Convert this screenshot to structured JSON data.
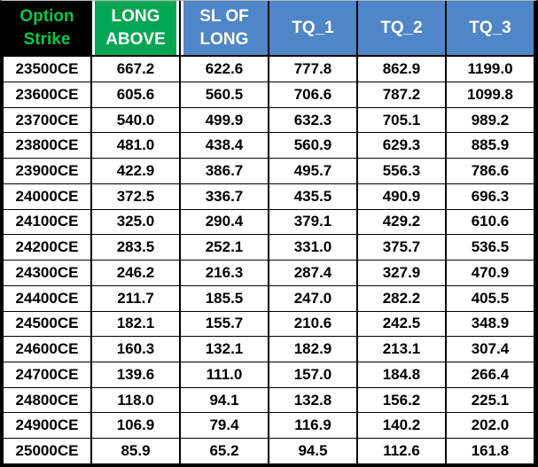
{
  "colors": {
    "header_green": "#00A651",
    "header_blue": "#4E86C8",
    "strike_text_green": "#00C846",
    "grid_black": "#000000",
    "header_text_white": "#FFFFFF",
    "cell_text_black": "#000000"
  },
  "table": {
    "headers": {
      "option_strike_line1": "Option",
      "option_strike_line2": "Strike",
      "long_above_line1": "LONG",
      "long_above_line2": "ABOVE",
      "sl_of_long_line1": "SL OF",
      "sl_of_long_line2": "LONG",
      "tq1": "TQ_1",
      "tq2": "TQ_2",
      "tq3": "TQ_3"
    },
    "rows": [
      {
        "strike": "23500CE",
        "long_above": "667.2",
        "sl_of_long": "622.6",
        "tq1": "777.8",
        "tq2": "862.9",
        "tq3": "1199.0"
      },
      {
        "strike": "23600CE",
        "long_above": "605.6",
        "sl_of_long": "560.5",
        "tq1": "706.6",
        "tq2": "787.2",
        "tq3": "1099.8"
      },
      {
        "strike": "23700CE",
        "long_above": "540.0",
        "sl_of_long": "499.9",
        "tq1": "632.3",
        "tq2": "705.1",
        "tq3": "989.2"
      },
      {
        "strike": "23800CE",
        "long_above": "481.0",
        "sl_of_long": "438.4",
        "tq1": "560.9",
        "tq2": "629.3",
        "tq3": "885.9"
      },
      {
        "strike": "23900CE",
        "long_above": "422.9",
        "sl_of_long": "386.7",
        "tq1": "495.7",
        "tq2": "556.3",
        "tq3": "786.6"
      },
      {
        "strike": "24000CE",
        "long_above": "372.5",
        "sl_of_long": "336.7",
        "tq1": "435.5",
        "tq2": "490.9",
        "tq3": "696.3"
      },
      {
        "strike": "24100CE",
        "long_above": "325.0",
        "sl_of_long": "290.4",
        "tq1": "379.1",
        "tq2": "429.2",
        "tq3": "610.6"
      },
      {
        "strike": "24200CE",
        "long_above": "283.5",
        "sl_of_long": "252.1",
        "tq1": "331.0",
        "tq2": "375.7",
        "tq3": "536.5"
      },
      {
        "strike": "24300CE",
        "long_above": "246.2",
        "sl_of_long": "216.3",
        "tq1": "287.4",
        "tq2": "327.9",
        "tq3": "470.9"
      },
      {
        "strike": "24400CE",
        "long_above": "211.7",
        "sl_of_long": "185.5",
        "tq1": "247.0",
        "tq2": "282.2",
        "tq3": "405.5"
      },
      {
        "strike": "24500CE",
        "long_above": "182.1",
        "sl_of_long": "155.7",
        "tq1": "210.6",
        "tq2": "242.5",
        "tq3": "348.9"
      },
      {
        "strike": "24600CE",
        "long_above": "160.3",
        "sl_of_long": "132.1",
        "tq1": "182.9",
        "tq2": "213.1",
        "tq3": "307.4"
      },
      {
        "strike": "24700CE",
        "long_above": "139.6",
        "sl_of_long": "111.0",
        "tq1": "157.0",
        "tq2": "184.8",
        "tq3": "266.4"
      },
      {
        "strike": "24800CE",
        "long_above": "118.0",
        "sl_of_long": "94.1",
        "tq1": "132.8",
        "tq2": "156.2",
        "tq3": "225.1"
      },
      {
        "strike": "24900CE",
        "long_above": "106.9",
        "sl_of_long": "79.4",
        "tq1": "116.9",
        "tq2": "140.2",
        "tq3": "202.0"
      },
      {
        "strike": "25000CE",
        "long_above": "85.9",
        "sl_of_long": "65.2",
        "tq1": "94.5",
        "tq2": "112.6",
        "tq3": "161.8"
      }
    ]
  }
}
